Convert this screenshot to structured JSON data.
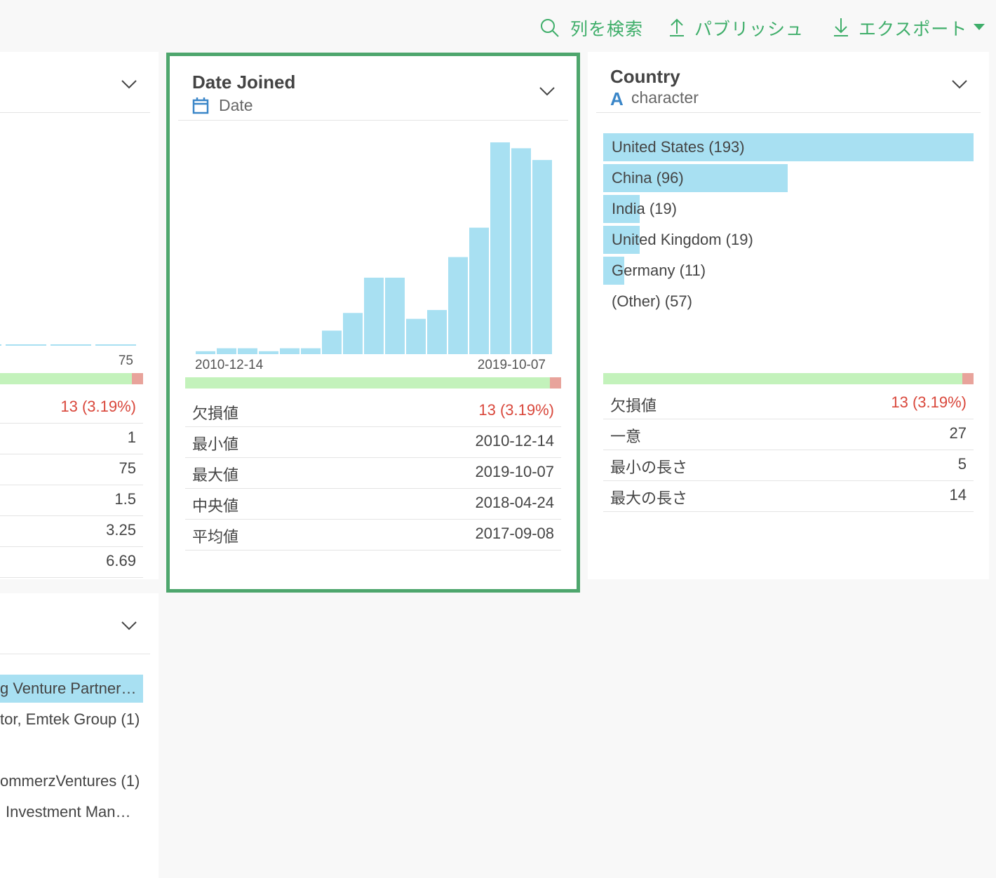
{
  "toolbar": {
    "search": "列を検索",
    "publish": "パブリッシュ",
    "export": "エクスポート"
  },
  "left_panel": {
    "axis_label": "75",
    "stats": [
      "13 (3.19%)",
      "1",
      "75",
      "1.5",
      "3.25",
      "6.69"
    ]
  },
  "bottom_left_panel": {
    "items": [
      "g Venture Partner…",
      "tor, Emtek Group (1)",
      "ommerzVentures (1)",
      "Investment Man…"
    ]
  },
  "date_panel": {
    "title": "Date Joined",
    "type": "Date",
    "chart_data": {
      "type": "histogram",
      "color": "#a8e0f2",
      "values": [
        1,
        2,
        2,
        1,
        2,
        2,
        8,
        14,
        26,
        26,
        12,
        15,
        33,
        43,
        72,
        70,
        66
      ],
      "x_start_label": "2010-12-14",
      "x_end_label": "2019-10-07"
    },
    "stats": [
      {
        "label": "欠損値",
        "value": "13 (3.19%)"
      },
      {
        "label": "最小値",
        "value": "2010-12-14"
      },
      {
        "label": "最大値",
        "value": "2019-10-07"
      },
      {
        "label": "中央値",
        "value": "2018-04-24"
      },
      {
        "label": "平均値",
        "value": "2017-09-08"
      }
    ]
  },
  "country_panel": {
    "title": "Country",
    "type": "character",
    "chart_data": {
      "type": "bar",
      "color": "#a8e0f2",
      "categories": [
        "United States (193)",
        "China (96)",
        "India (19)",
        "United Kingdom (19)",
        "Germany (11)"
      ],
      "values": [
        193,
        96,
        19,
        19,
        11
      ]
    },
    "other": "(Other) (57)",
    "stats": [
      {
        "label": "欠損値",
        "value": "13 (3.19%)"
      },
      {
        "label": "一意",
        "value": "27"
      },
      {
        "label": "最小の長さ",
        "value": "5"
      },
      {
        "label": "最大の長さ",
        "value": "14"
      }
    ]
  }
}
